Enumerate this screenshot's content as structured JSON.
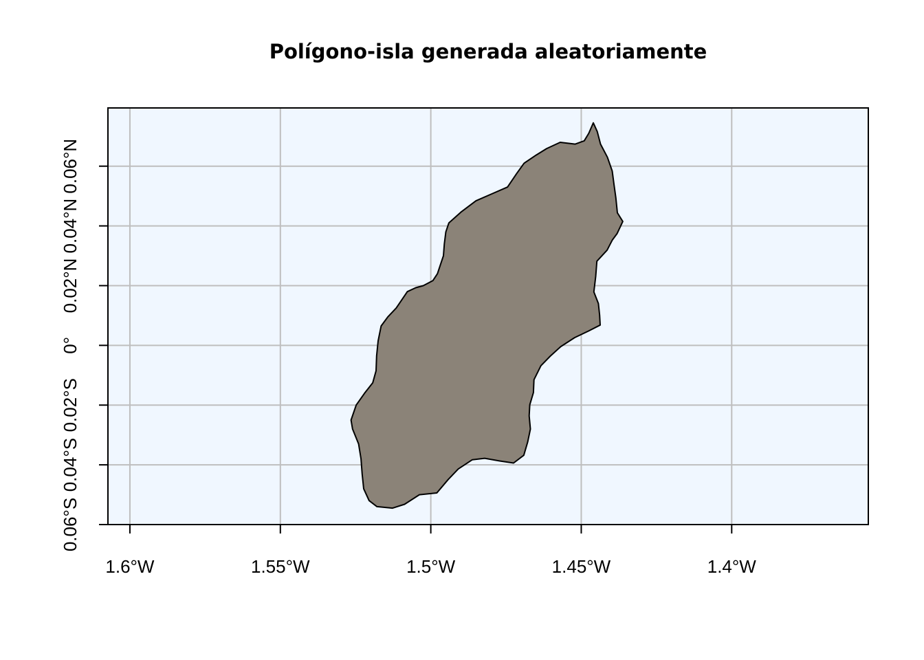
{
  "title": "Polígono-isla generada aleatoriamente",
  "colors": {
    "sea": "#f0f7ff",
    "land": "#8b8378",
    "coastline": "#000000",
    "grid": "#bebebe",
    "frame": "#000000"
  },
  "chart_data": {
    "type": "map",
    "title": "Polígono-isla generada aleatoriamente",
    "grid": true,
    "xlim": [
      -1.6073,
      -1.3546
    ],
    "ylim": [
      -0.06,
      0.0795
    ],
    "x_ticks": [
      {
        "value": -1.6,
        "label": "1.6°W"
      },
      {
        "value": -1.55,
        "label": "1.55°W"
      },
      {
        "value": -1.5,
        "label": "1.5°W"
      },
      {
        "value": -1.45,
        "label": "1.45°W"
      },
      {
        "value": -1.4,
        "label": "1.4°W"
      }
    ],
    "y_ticks": [
      {
        "value": -0.06,
        "label": "0.06°S"
      },
      {
        "value": -0.04,
        "label": "0.04°S"
      },
      {
        "value": -0.02,
        "label": "0.02°S"
      },
      {
        "value": 0.0,
        "label": "0°"
      },
      {
        "value": 0.02,
        "label": "0.02°N"
      },
      {
        "value": 0.04,
        "label": "0.04°N"
      },
      {
        "value": 0.06,
        "label": "0.06°N"
      }
    ],
    "island_polygon": [
      [
        -1.446,
        0.0745
      ],
      [
        -1.4447,
        0.0716
      ],
      [
        -1.4436,
        0.0674
      ],
      [
        -1.4413,
        0.063
      ],
      [
        -1.4397,
        0.0584
      ],
      [
        -1.4391,
        0.0537
      ],
      [
        -1.4385,
        0.0494
      ],
      [
        -1.438,
        0.0444
      ],
      [
        -1.4362,
        0.0415
      ],
      [
        -1.4381,
        0.0374
      ],
      [
        -1.4397,
        0.0352
      ],
      [
        -1.4414,
        0.0319
      ],
      [
        -1.4448,
        0.0282
      ],
      [
        -1.4452,
        0.0231
      ],
      [
        -1.4458,
        0.0179
      ],
      [
        -1.4443,
        0.014
      ],
      [
        -1.4439,
        0.0101
      ],
      [
        -1.4437,
        0.0068
      ],
      [
        -1.4476,
        0.0048
      ],
      [
        -1.4522,
        0.0026
      ],
      [
        -1.4568,
        -0.0004
      ],
      [
        -1.4603,
        -0.0036
      ],
      [
        -1.4634,
        -0.0068
      ],
      [
        -1.4657,
        -0.0115
      ],
      [
        -1.4659,
        -0.0158
      ],
      [
        -1.4671,
        -0.0199
      ],
      [
        -1.4673,
        -0.0236
      ],
      [
        -1.4669,
        -0.028
      ],
      [
        -1.4678,
        -0.0323
      ],
      [
        -1.4691,
        -0.0368
      ],
      [
        -1.4725,
        -0.0394
      ],
      [
        -1.4771,
        -0.0387
      ],
      [
        -1.4821,
        -0.0378
      ],
      [
        -1.4862,
        -0.0383
      ],
      [
        -1.4909,
        -0.0414
      ],
      [
        -1.4943,
        -0.045
      ],
      [
        -1.498,
        -0.0494
      ],
      [
        -1.5038,
        -0.05
      ],
      [
        -1.5087,
        -0.0532
      ],
      [
        -1.5127,
        -0.0545
      ],
      [
        -1.5179,
        -0.054
      ],
      [
        -1.5205,
        -0.052
      ],
      [
        -1.5223,
        -0.048
      ],
      [
        -1.5228,
        -0.0431
      ],
      [
        -1.5232,
        -0.038
      ],
      [
        -1.524,
        -0.033
      ],
      [
        -1.526,
        -0.028
      ],
      [
        -1.5265,
        -0.025
      ],
      [
        -1.5248,
        -0.02
      ],
      [
        -1.522,
        -0.016
      ],
      [
        -1.5193,
        -0.0125
      ],
      [
        -1.5182,
        -0.0085
      ],
      [
        -1.518,
        -0.0035
      ],
      [
        -1.5175,
        0.0015
      ],
      [
        -1.5165,
        0.0065
      ],
      [
        -1.5143,
        0.0095
      ],
      [
        -1.5115,
        0.0125
      ],
      [
        -1.5098,
        0.015
      ],
      [
        -1.5078,
        0.018
      ],
      [
        -1.505,
        0.0193
      ],
      [
        -1.5025,
        0.02
      ],
      [
        -1.4993,
        0.0217
      ],
      [
        -1.4978,
        0.024
      ],
      [
        -1.4968,
        0.027
      ],
      [
        -1.4958,
        0.03
      ],
      [
        -1.4955,
        0.034
      ],
      [
        -1.495,
        0.038
      ],
      [
        -1.494,
        0.041
      ],
      [
        -1.49,
        0.0446
      ],
      [
        -1.485,
        0.0484
      ],
      [
        -1.48,
        0.0506
      ],
      [
        -1.4745,
        0.053
      ],
      [
        -1.4715,
        0.0575
      ],
      [
        -1.469,
        0.061
      ],
      [
        -1.465,
        0.0637
      ],
      [
        -1.4615,
        0.0659
      ],
      [
        -1.457,
        0.068
      ],
      [
        -1.452,
        0.0674
      ],
      [
        -1.449,
        0.0685
      ],
      [
        -1.4475,
        0.071
      ],
      [
        -1.446,
        0.0745
      ]
    ]
  }
}
